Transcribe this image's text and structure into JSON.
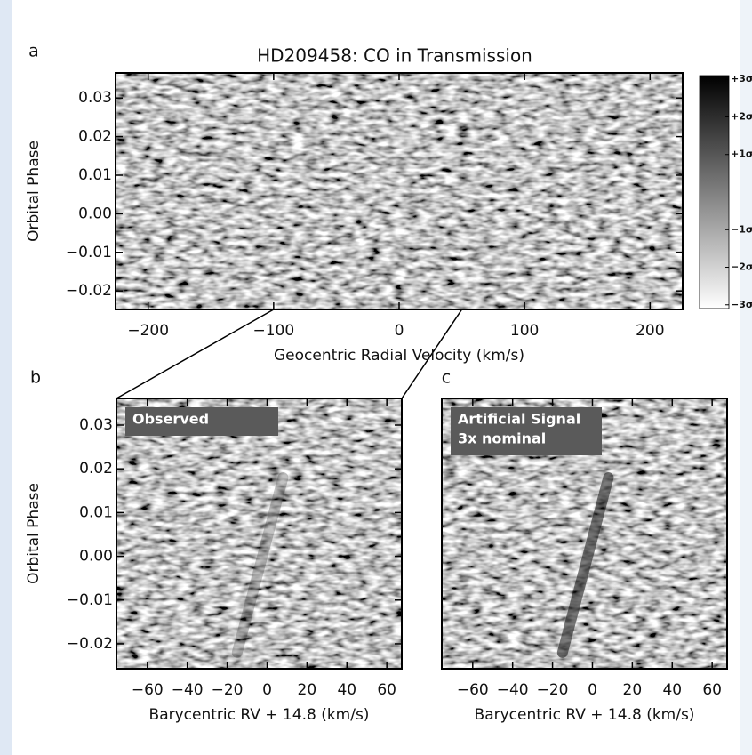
{
  "chart_data": [
    {
      "type": "heatmap",
      "panel": "a",
      "title": "HD209458: CO in Transmission",
      "xlabel": "Geocentric Radial Velocity (km/s)",
      "ylabel": "Orbital Phase",
      "xlim": [
        -226,
        226
      ],
      "ylim": [
        -0.0248,
        0.0365
      ],
      "xticks": [
        {
          "value": -200,
          "label": "−200"
        },
        {
          "value": -100,
          "label": "−100"
        },
        0,
        100,
        200
      ],
      "yticks": [
        {
          "value": -0.02,
          "label": "−0.02"
        },
        {
          "value": -0.01,
          "label": "−0.01"
        },
        {
          "value": 0,
          "label": "0.00"
        },
        0.01,
        0.02,
        0.03
      ],
      "colorbar": {
        "clim": [
          -3.1,
          3.1
        ],
        "ticks": [
          {
            "value": 3,
            "label": "+3σ"
          },
          {
            "value": 2,
            "label": "+2σ"
          },
          {
            "value": 1,
            "label": "+1σ"
          },
          {
            "value": -1,
            "label": "−1σ"
          },
          {
            "value": -2,
            "label": "−2σ"
          },
          {
            "value": -3,
            "label": "−3σ"
          }
        ]
      }
    },
    {
      "type": "heatmap",
      "panel": "b",
      "annotation": [
        "Observed"
      ],
      "xlabel": "Barycentric RV + 14.8 (km/s)",
      "ylabel": "Orbital Phase",
      "xlim": [
        -75.5,
        67.5
      ],
      "ylim": [
        -0.0257,
        0.0361
      ],
      "xticks": [
        {
          "value": -60,
          "label": "−60"
        },
        {
          "value": -40,
          "label": "−40"
        },
        {
          "value": -20,
          "label": "−20"
        },
        0,
        20,
        40,
        60
      ],
      "yticks": [
        {
          "value": -0.02,
          "label": "−0.02"
        },
        {
          "value": -0.01,
          "label": "−0.01"
        },
        {
          "value": 0,
          "label": "0.00"
        },
        0.01,
        0.02,
        0.03
      ]
    },
    {
      "type": "heatmap",
      "panel": "c",
      "annotation": [
        "Artificial Signal",
        "3x nominal"
      ],
      "xlabel": "Barycentric RV + 14.8 (km/s)",
      "xlim": [
        -75.5,
        67.5
      ],
      "ylim": [
        -0.0257,
        0.0361
      ],
      "xticks": [
        {
          "value": -60,
          "label": "−60"
        },
        {
          "value": -40,
          "label": "−40"
        },
        {
          "value": -20,
          "label": "−20"
        },
        0,
        20,
        40,
        60
      ]
    }
  ]
}
